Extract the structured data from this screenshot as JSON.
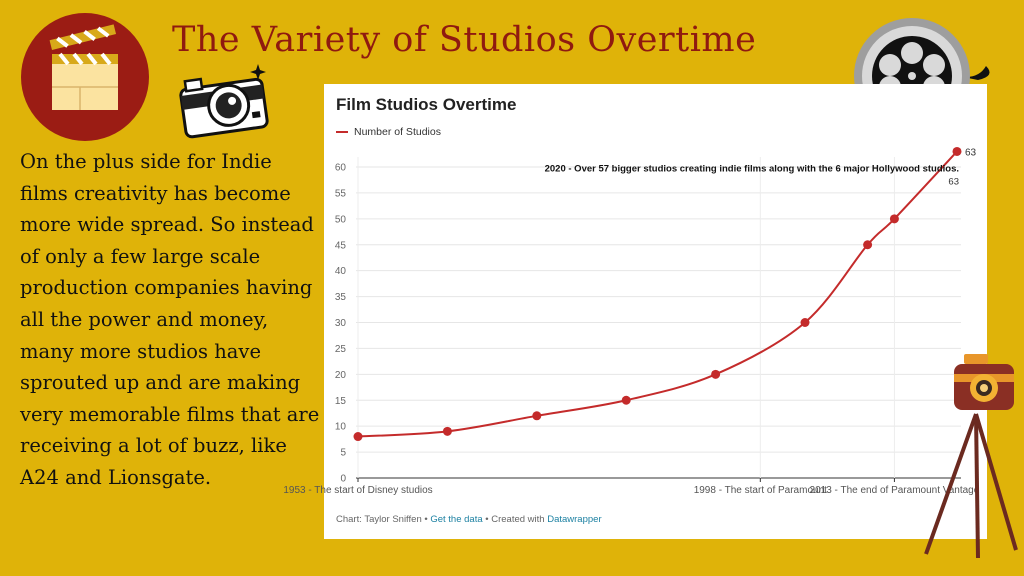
{
  "slide": {
    "title": "The Variety of Studios Overtime",
    "body": "On the plus side for Indie films creativity has become more wide spread. So instead of only a few large scale production companies having all the power and money, many more studios have sprouted up and are making very memorable films that are receiving a lot of buzz, like A24 and Lionsgate."
  },
  "chart_footer": {
    "source": "Chart: Taylor Sniffen",
    "sep1": " • ",
    "get_data": "Get the data",
    "sep2": " • Created with ",
    "datawrapper": "Datawrapper"
  },
  "colors": {
    "background": "#dfb309",
    "series": "#c42b2b",
    "title_text": "#8f1a10",
    "link": "#1d81a2"
  },
  "chart_data": {
    "type": "line",
    "title": "Film Studios Overtime",
    "series": [
      {
        "name": "Number of Studios",
        "x": [
          1953,
          1963,
          1973,
          1983,
          1993,
          2003,
          2010,
          2013,
          2020
        ],
        "values": [
          8,
          9,
          12,
          15,
          20,
          30,
          45,
          50,
          63
        ]
      }
    ],
    "x_range": [
      1953,
      2020
    ],
    "ylim": [
      0,
      60
    ],
    "y_ticks": [
      0,
      5,
      10,
      15,
      20,
      25,
      30,
      35,
      40,
      45,
      50,
      55,
      60
    ],
    "x_ticks": [
      {
        "x": 1953,
        "label": "1953 - The start of Disney studios"
      },
      {
        "x": 1998,
        "label": "1998 - The start of Paramount"
      },
      {
        "x": 2013,
        "label": "2013 - The end of Paramount Vantage"
      }
    ],
    "grid": true,
    "legend": "top-left",
    "annotations": [
      {
        "text": "2020 - Over 57 bigger studios creating indie films along with the 6 major Hollywood studios.",
        "value": "63"
      }
    ],
    "end_label": "63"
  }
}
